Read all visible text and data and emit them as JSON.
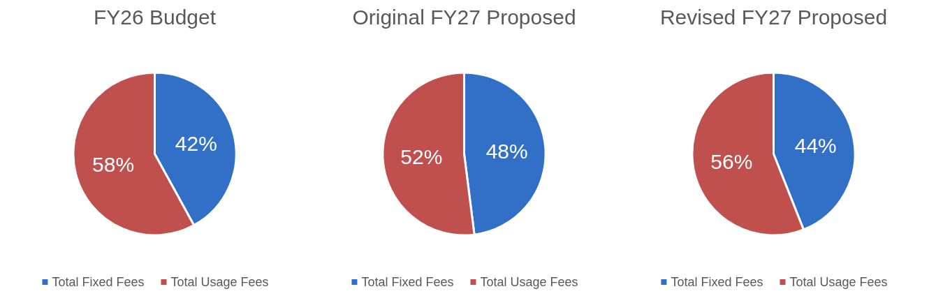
{
  "chart_data": [
    {
      "type": "pie",
      "title": "FY26 Budget",
      "categories": [
        "Total Fixed Fees",
        "Total Usage Fees"
      ],
      "values": [
        42,
        58
      ],
      "value_labels": [
        "42%",
        "58%"
      ],
      "colors": [
        "#3170c6",
        "#c0504d"
      ],
      "legend": "bottom"
    },
    {
      "type": "pie",
      "title": "Original FY27 Proposed",
      "categories": [
        "Total Fixed Fees",
        "Total Usage Fees"
      ],
      "values": [
        48,
        52
      ],
      "value_labels": [
        "48%",
        "52%"
      ],
      "colors": [
        "#3170c6",
        "#c0504d"
      ],
      "legend": "bottom"
    },
    {
      "type": "pie",
      "title": "Revised FY27 Proposed",
      "categories": [
        "Total Fixed Fees",
        "Total Usage Fees"
      ],
      "values": [
        44,
        56
      ],
      "value_labels": [
        "44%",
        "56%"
      ],
      "colors": [
        "#3170c6",
        "#c0504d"
      ],
      "legend": "bottom"
    }
  ]
}
